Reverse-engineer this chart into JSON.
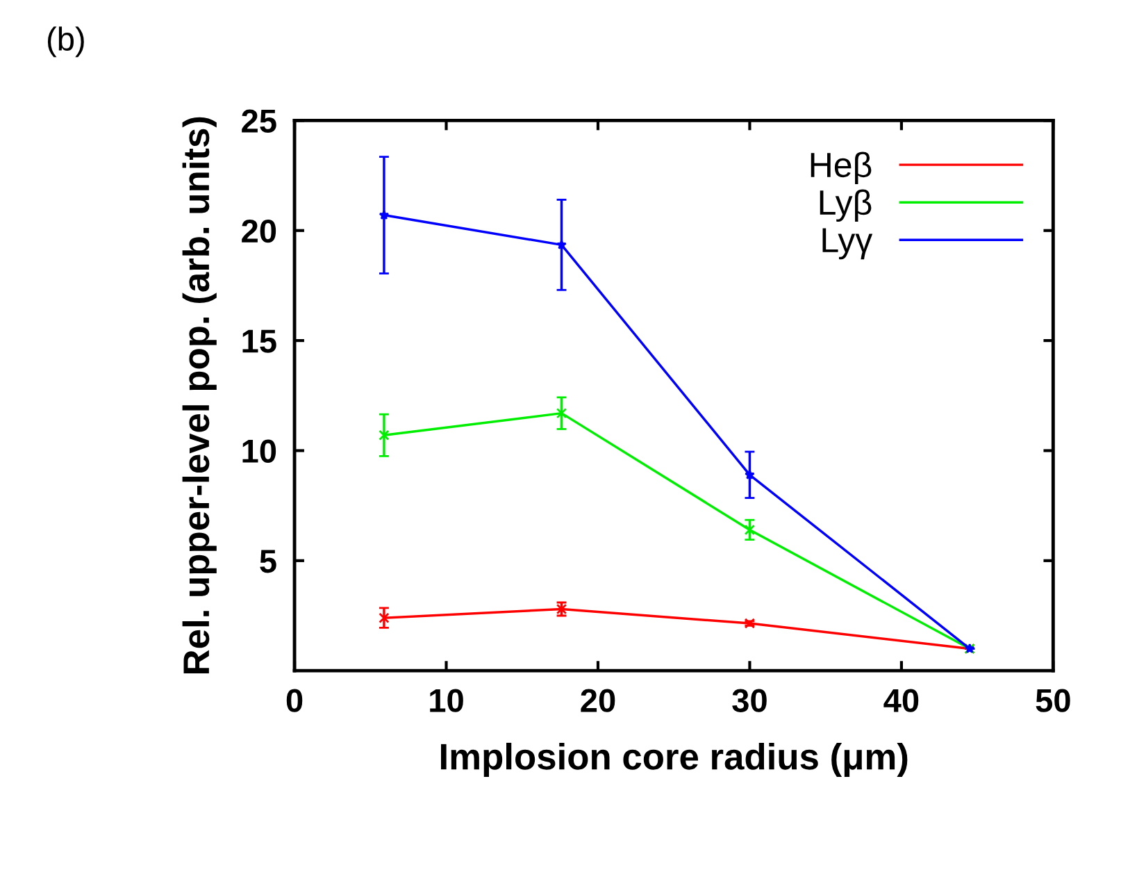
{
  "chart_data": {
    "type": "line",
    "xlabel": "Implosion core radius (μm)",
    "ylabel": "Rel. upper-level pop. (arb. units)",
    "annotations": [
      "(b)"
    ],
    "x": [
      5.9,
      17.6,
      30.0,
      44.5
    ],
    "series": [
      {
        "name": "Heβ",
        "color": "#ff0000",
        "marker": "cross",
        "values": [
          2.4,
          2.8,
          2.15,
          1.0
        ],
        "errors": [
          0.45,
          0.3,
          0.1,
          null
        ]
      },
      {
        "name": "Lyβ",
        "color": "#00ee00",
        "marker": "cross",
        "values": [
          10.7,
          11.7,
          6.4,
          1.0
        ],
        "errors": [
          0.95,
          0.72,
          0.45,
          null
        ]
      },
      {
        "name": "Lyγ",
        "color": "#0000ff",
        "marker": "star",
        "values": [
          20.7,
          19.35,
          8.9,
          1.0
        ],
        "errors": [
          2.65,
          2.05,
          1.05,
          null
        ]
      }
    ],
    "xlim": [
      0,
      50
    ],
    "xticks": [
      0,
      10,
      20,
      30,
      40,
      50
    ],
    "ylim": [
      0,
      25
    ],
    "yticks": [
      5,
      10,
      15,
      20,
      25
    ],
    "legend": "top right",
    "grid": false
  }
}
